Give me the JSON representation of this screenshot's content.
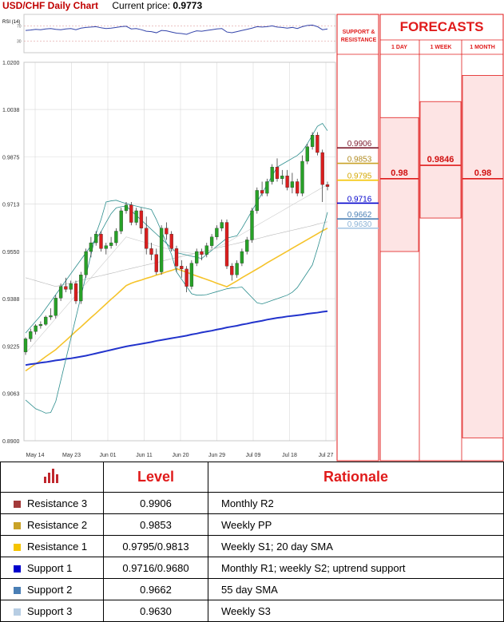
{
  "header": {
    "title": "USD/CHF Daily Chart",
    "current_price_label": "Current price:",
    "current_price": "0.9773"
  },
  "rsi_label": "RSI (14)",
  "rsi_ticks": [
    "70",
    "30"
  ],
  "colors": {
    "accent": "#e01b1b",
    "bull": "#27a127",
    "bear": "#d91e1e",
    "sma20": "#f5c32a",
    "sma100": "#2233cc",
    "bollinger": "#2d8e8e"
  },
  "chart_data": {
    "type": "line",
    "title": "USD/CHF Daily Chart",
    "xlabel": "",
    "ylabel": "",
    "ylim": [
      0.89,
      1.02
    ],
    "y_ticks": [
      "1.0200",
      "1.0038",
      "0.9875",
      "0.9713",
      "0.9550",
      "0.9388",
      "0.9225",
      "0.9063",
      "0.8900"
    ],
    "x_ticks": [
      "May 14",
      "May 23",
      "Jun 01",
      "Jun 11",
      "Jun 20",
      "Jun 29",
      "Jul 09",
      "Jul 18",
      "Jul 27"
    ],
    "candles": [
      [
        0.9205,
        0.9255,
        0.9195,
        0.925
      ],
      [
        0.925,
        0.9285,
        0.924,
        0.9275
      ],
      [
        0.9275,
        0.93,
        0.9265,
        0.9295
      ],
      [
        0.9295,
        0.931,
        0.9285,
        0.93
      ],
      [
        0.93,
        0.933,
        0.9295,
        0.9325
      ],
      [
        0.9325,
        0.9355,
        0.9315,
        0.933
      ],
      [
        0.933,
        0.94,
        0.932,
        0.939
      ],
      [
        0.939,
        0.944,
        0.938,
        0.943
      ],
      [
        0.943,
        0.946,
        0.941,
        0.942
      ],
      [
        0.942,
        0.945,
        0.9405,
        0.944
      ],
      [
        0.944,
        0.945,
        0.937,
        0.938
      ],
      [
        0.938,
        0.948,
        0.937,
        0.947
      ],
      [
        0.947,
        0.956,
        0.946,
        0.955
      ],
      [
        0.955,
        0.96,
        0.953,
        0.958
      ],
      [
        0.958,
        0.962,
        0.957,
        0.961
      ],
      [
        0.961,
        0.962,
        0.955,
        0.956
      ],
      [
        0.956,
        0.958,
        0.954,
        0.957
      ],
      [
        0.957,
        0.96,
        0.956,
        0.958
      ],
      [
        0.958,
        0.963,
        0.957,
        0.962
      ],
      [
        0.962,
        0.97,
        0.961,
        0.969
      ],
      [
        0.969,
        0.972,
        0.968,
        0.971
      ],
      [
        0.971,
        0.972,
        0.964,
        0.965
      ],
      [
        0.965,
        0.97,
        0.964,
        0.969
      ],
      [
        0.969,
        0.97,
        0.961,
        0.963
      ],
      [
        0.963,
        0.967,
        0.954,
        0.956
      ],
      [
        0.956,
        0.958,
        0.952,
        0.954
      ],
      [
        0.954,
        0.956,
        0.947,
        0.948
      ],
      [
        0.948,
        0.964,
        0.947,
        0.963
      ],
      [
        0.963,
        0.965,
        0.959,
        0.961
      ],
      [
        0.961,
        0.962,
        0.955,
        0.956
      ],
      [
        0.956,
        0.957,
        0.948,
        0.95
      ],
      [
        0.95,
        0.952,
        0.946,
        0.949
      ],
      [
        0.949,
        0.95,
        0.941,
        0.943
      ],
      [
        0.943,
        0.952,
        0.942,
        0.951
      ],
      [
        0.951,
        0.956,
        0.95,
        0.955
      ],
      [
        0.955,
        0.956,
        0.952,
        0.954
      ],
      [
        0.954,
        0.958,
        0.953,
        0.957
      ],
      [
        0.957,
        0.961,
        0.956,
        0.96
      ],
      [
        0.96,
        0.964,
        0.959,
        0.963
      ],
      [
        0.963,
        0.966,
        0.962,
        0.965
      ],
      [
        0.965,
        0.966,
        0.949,
        0.95
      ],
      [
        0.95,
        0.951,
        0.945,
        0.947
      ],
      [
        0.947,
        0.952,
        0.946,
        0.951
      ],
      [
        0.951,
        0.956,
        0.95,
        0.955
      ],
      [
        0.955,
        0.96,
        0.954,
        0.959
      ],
      [
        0.959,
        0.97,
        0.958,
        0.969
      ],
      [
        0.969,
        0.977,
        0.968,
        0.976
      ],
      [
        0.976,
        0.979,
        0.974,
        0.975
      ],
      [
        0.975,
        0.98,
        0.974,
        0.979
      ],
      [
        0.979,
        0.985,
        0.978,
        0.984
      ],
      [
        0.984,
        0.987,
        0.979,
        0.98
      ],
      [
        0.98,
        0.983,
        0.978,
        0.981
      ],
      [
        0.981,
        0.983,
        0.976,
        0.977
      ],
      [
        0.977,
        0.982,
        0.975,
        0.979
      ],
      [
        0.979,
        0.98,
        0.974,
        0.975
      ],
      [
        0.975,
        0.988,
        0.974,
        0.986
      ],
      [
        0.986,
        0.992,
        0.985,
        0.991
      ],
      [
        0.991,
        0.996,
        0.99,
        0.995
      ],
      [
        0.995,
        0.996,
        0.988,
        0.989
      ],
      [
        0.989,
        0.99,
        0.972,
        0.978
      ],
      [
        0.978,
        0.979,
        0.976,
        0.9773
      ]
    ],
    "series": [
      {
        "values": [
          0.914,
          0.9152,
          0.9164,
          0.9176,
          0.9189,
          0.9201,
          0.9213,
          0.9229,
          0.9244,
          0.926,
          0.9276,
          0.9291,
          0.9307,
          0.9323,
          0.9338,
          0.9354,
          0.937,
          0.9386,
          0.9401,
          0.9417,
          0.9433,
          0.9441,
          0.9447,
          0.9452,
          0.9458,
          0.9463,
          0.9469,
          0.9474,
          0.948,
          0.9485,
          0.9491,
          0.9485,
          0.9479,
          0.9472,
          0.9466,
          0.946,
          0.9454,
          0.9448,
          0.9441,
          0.9435,
          0.9429,
          0.9439,
          0.9449,
          0.946,
          0.947,
          0.948,
          0.949,
          0.95,
          0.9511,
          0.9521,
          0.9531,
          0.9541,
          0.9551,
          0.9561,
          0.9571,
          0.9581,
          0.9591,
          0.9601,
          0.9611,
          0.9621,
          0.963
        ]
      },
      {
        "values": [
          0.946,
          0.9455,
          0.945,
          0.9445,
          0.944,
          0.9435,
          0.943,
          0.9434,
          0.9438,
          0.9442,
          0.9446,
          0.9451,
          0.9455,
          0.9459,
          0.9463,
          0.9467,
          0.9471,
          0.9475,
          0.9479,
          0.9484,
          0.9488,
          0.9492,
          0.9496,
          0.95,
          0.9504,
          0.9508,
          0.9512,
          0.9516,
          0.9521,
          0.9525,
          0.9529,
          0.9533,
          0.9537,
          0.9541,
          0.9545,
          0.9549,
          0.9553,
          0.9557,
          0.9562,
          0.9566,
          0.957,
          0.9574,
          0.9578,
          0.9582,
          0.9586,
          0.959,
          0.9594,
          0.9598,
          0.9603,
          0.9607,
          0.9611,
          0.9615,
          0.9619,
          0.9623,
          0.9627,
          0.9631,
          0.9635,
          0.9639,
          0.9644,
          0.9648,
          0.9652
        ]
      },
      {
        "values": [
          0.916,
          0.9163,
          0.9165,
          0.9168,
          0.917,
          0.9173,
          0.9176,
          0.9178,
          0.9181,
          0.9183,
          0.9186,
          0.9189,
          0.9192,
          0.9196,
          0.92,
          0.9204,
          0.9208,
          0.9212,
          0.9216,
          0.922,
          0.9224,
          0.9227,
          0.923,
          0.9233,
          0.9236,
          0.9239,
          0.9243,
          0.9246,
          0.9249,
          0.9252,
          0.9255,
          0.9258,
          0.9261,
          0.9265,
          0.9268,
          0.9272,
          0.9275,
          0.9278,
          0.9282,
          0.9285,
          0.9289,
          0.9292,
          0.9295,
          0.9299,
          0.9302,
          0.9306,
          0.9309,
          0.9312,
          0.9316,
          0.9319,
          0.9322,
          0.9324,
          0.9327,
          0.9329,
          0.9331,
          0.9333,
          0.9336,
          0.9338,
          0.934,
          0.9343,
          0.9345
        ]
      },
      {
        "values": [
          0.904,
          0.9025,
          0.901,
          0.9003,
          0.8995,
          0.8997,
          0.9035,
          0.9107,
          0.9179,
          0.9251,
          0.9323,
          0.9395,
          0.9467,
          0.9539,
          0.9611,
          0.966,
          0.972,
          0.9724,
          0.9726,
          0.972,
          0.9715,
          0.971,
          0.9706,
          0.9702,
          0.9698,
          0.9694,
          0.966,
          0.962,
          0.958,
          0.954,
          0.948,
          0.9455,
          0.943,
          0.9405,
          0.94,
          0.94,
          0.9402,
          0.9407,
          0.9412,
          0.9417,
          0.9422,
          0.9425,
          0.9426,
          0.9428,
          0.941,
          0.9392,
          0.9374,
          0.937,
          0.9376,
          0.9382,
          0.9388,
          0.9394,
          0.94,
          0.941,
          0.9426,
          0.9452,
          0.9478,
          0.9504,
          0.956,
          0.962,
          0.9685
        ]
      },
      {
        "values": [
          0.927,
          0.929,
          0.931,
          0.933,
          0.9354,
          0.9378,
          0.9402,
          0.9426,
          0.945,
          0.9474,
          0.9498,
          0.9522,
          0.9546,
          0.957,
          0.9594,
          0.9618,
          0.965,
          0.968,
          0.97,
          0.9704,
          0.9706,
          0.969,
          0.9674,
          0.9658,
          0.9642,
          0.9626,
          0.961,
          0.9594,
          0.9578,
          0.9562,
          0.9546,
          0.9542,
          0.9538,
          0.9534,
          0.953,
          0.9526,
          0.954,
          0.9554,
          0.9568,
          0.9582,
          0.9596,
          0.96,
          0.9604,
          0.963,
          0.966,
          0.969,
          0.972,
          0.975,
          0.978,
          0.981,
          0.984,
          0.985,
          0.986,
          0.987,
          0.988,
          0.9895,
          0.992,
          0.995,
          0.998,
          0.999,
          0.9965
        ]
      },
      {
        "values": [
          0.92,
          0.922,
          0.924,
          0.926,
          0.928,
          0.93,
          0.932,
          0.934,
          0.936,
          0.938,
          0.94,
          0.942,
          0.944,
          0.946,
          0.948,
          0.95,
          0.952,
          0.954,
          0.956,
          0.958,
          0.96,
          0.9595,
          0.959,
          0.9585,
          0.958,
          0.9575,
          0.957,
          0.9565,
          0.956,
          0.9555,
          0.955,
          0.9548,
          0.9546,
          0.9544,
          0.9542,
          0.954,
          0.9548,
          0.9556,
          0.9564,
          0.9572,
          0.958,
          0.959,
          0.96,
          0.961,
          0.962,
          0.963,
          0.964,
          0.965,
          0.966,
          0.967,
          0.968,
          0.969,
          0.97,
          0.971,
          0.972,
          0.973,
          0.974,
          0.975,
          0.976,
          0.977,
          0.978
        ]
      }
    ],
    "rsi": [
      58,
      59,
      61,
      60,
      62,
      63,
      61,
      60,
      62,
      63,
      60,
      64,
      66,
      67,
      68,
      65,
      63,
      64,
      66,
      68,
      69,
      62,
      63,
      60,
      56,
      55,
      52,
      58,
      57,
      54,
      51,
      50,
      48,
      53,
      57,
      56,
      58,
      60,
      62,
      63,
      54,
      52,
      55,
      58,
      61,
      64,
      68,
      67,
      68,
      70,
      67,
      66,
      64,
      66,
      63,
      68,
      71,
      72,
      68,
      60,
      62
    ]
  },
  "levels": [
    {
      "name": "Resistance 3",
      "value": 0.9906,
      "label": "0.9906",
      "color": "#7b1a2c"
    },
    {
      "name": "Resistance 2",
      "value": 0.9853,
      "label": "0.9853",
      "color": "#c9a227"
    },
    {
      "name": "Resistance 1",
      "value": 0.9795,
      "label": "0.9795",
      "color": "#f5c400"
    },
    {
      "name": "Support 1",
      "value": 0.9716,
      "label": "0.9716",
      "color": "#0000cc"
    },
    {
      "name": "Support 2",
      "value": 0.9662,
      "label": "0.9662",
      "color": "#4a7fb5"
    },
    {
      "name": "Support 3",
      "value": 0.963,
      "label": "0.9630",
      "color": "#a9c8e4"
    }
  ],
  "sr_header": "SUPPORT & RESISTANCE",
  "forecasts": {
    "title": "FORECASTS",
    "items": [
      {
        "label": "1 DAY",
        "value": 0.98,
        "text": "0.98",
        "low": 0.955,
        "high": 1.001
      },
      {
        "label": "1 WEEK",
        "value": 0.9846,
        "text": "0.9846",
        "low": 0.9665,
        "high": 1.0065
      },
      {
        "label": "1 MONTH",
        "value": 0.98,
        "text": "0.98",
        "low": 0.891,
        "high": 1.0155
      }
    ]
  },
  "table": {
    "headers": {
      "level": "Level",
      "rationale": "Rationale"
    },
    "rows": [
      {
        "name": "Resistance 3",
        "level": "0.9906",
        "rationale": "Monthly R2",
        "color": "#a33a3a"
      },
      {
        "name": "Resistance 2",
        "level": "0.9853",
        "rationale": "Weekly PP",
        "color": "#c9a227"
      },
      {
        "name": "Resistance 1",
        "level": "0.9795/0.9813",
        "rationale": "Weekly S1; 20 day SMA",
        "color": "#f5c400"
      },
      {
        "name": "Support 1",
        "level": "0.9716/0.9680",
        "rationale": "Monthly R1; weekly S2; uptrend support",
        "color": "#0000cc"
      },
      {
        "name": "Support 2",
        "level": "0.9662",
        "rationale": "55 day SMA",
        "color": "#4a7fb5"
      },
      {
        "name": "Support 3",
        "level": "0.9630",
        "rationale": "Weekly S3",
        "color": "#b7cde3"
      }
    ]
  }
}
